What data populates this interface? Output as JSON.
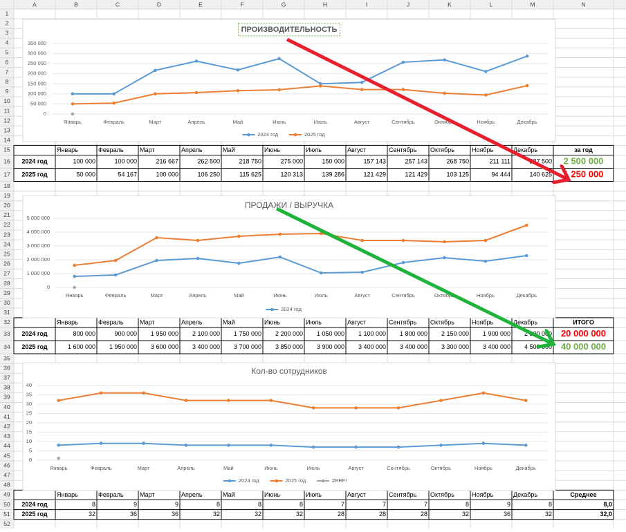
{
  "sheet": {
    "columns": [
      "A",
      "B",
      "C",
      "D",
      "E",
      "F",
      "G",
      "H",
      "I",
      "J",
      "K",
      "L",
      "M",
      "N"
    ],
    "rows": [
      1,
      2,
      3,
      4,
      5,
      6,
      7,
      8,
      9,
      10,
      11,
      12,
      13,
      14,
      15,
      16,
      17,
      18,
      19,
      20,
      21,
      22,
      23,
      24,
      25,
      26,
      27,
      28,
      29,
      30,
      31,
      32,
      33,
      34,
      35,
      36,
      37,
      38,
      39,
      40,
      41,
      42,
      43,
      44,
      45,
      46,
      47,
      48,
      49,
      50,
      51,
      52
    ]
  },
  "chart_data": [
    {
      "type": "line",
      "title": "ПРОИЗВОДИТЕЛЬНОСТЬ",
      "categories": [
        "Январь",
        "Февраль",
        "Март",
        "Апрель",
        "Май",
        "Июнь",
        "Июль",
        "Август",
        "Сентябрь",
        "Октябрь",
        "Ноябрь",
        "Декабрь"
      ],
      "series": [
        {
          "name": "2024 год",
          "color": "#5b9bd5",
          "values": [
            100000,
            100000,
            216667,
            262500,
            218750,
            275000,
            150000,
            157143,
            257143,
            268750,
            211111,
            287500
          ]
        },
        {
          "name": "2025 год",
          "color": "#ed7d31",
          "values": [
            50000,
            54167,
            100000,
            106250,
            115625,
            120313,
            139286,
            121429,
            121429,
            103125,
            94444,
            140625
          ]
        },
        {
          "color": "#a5a5a5",
          "values": [
            0,
            null,
            null,
            null,
            null,
            null,
            null,
            null,
            null,
            null,
            null,
            null
          ]
        }
      ],
      "ylim": [
        0,
        350000
      ],
      "yticks": [
        0,
        {
          "value": 50000,
          "label": "50 000"
        },
        {
          "value": 100000,
          "label": "100 000"
        },
        {
          "value": 150000,
          "label": "150 000"
        },
        {
          "value": 200000,
          "label": "200 000"
        },
        {
          "value": 250000,
          "label": "250 000"
        },
        {
          "value": 300000,
          "label": "300 000"
        },
        {
          "value": 350000,
          "label": "350 000"
        }
      ],
      "grid": true,
      "legend": "bottom"
    },
    {
      "type": "line",
      "title": "ПРОДАЖИ / ВЫРУЧКА",
      "categories": [
        "Январь",
        "Февраль",
        "Март",
        "Апрель",
        "Май",
        "Июнь",
        "Июль",
        "Август",
        "Сентябрь",
        "Октябрь",
        "Ноябрь",
        "Декабрь"
      ],
      "series": [
        {
          "name": "2024 год",
          "color": "#5b9bd5",
          "values": [
            800000,
            900000,
            1950000,
            2100000,
            1750000,
            2200000,
            1050000,
            1100000,
            1800000,
            2150000,
            1900000,
            2300000
          ]
        },
        {
          "color": "#ed7d31",
          "values": [
            1600000,
            1950000,
            3600000,
            3400000,
            3700000,
            3850000,
            3900000,
            3400000,
            3400000,
            3300000,
            3400000,
            4500000
          ]
        },
        {
          "color": "#a5a5a5",
          "values": [
            0,
            null,
            null,
            null,
            null,
            null,
            null,
            null,
            null,
            null,
            null,
            null
          ]
        }
      ],
      "ylim": [
        0,
        5000000
      ],
      "yticks": [
        0,
        {
          "value": 1000000,
          "label": "1 000 000"
        },
        {
          "value": 2000000,
          "label": "2 000 000"
        },
        {
          "value": 3000000,
          "label": "3 000 000"
        },
        {
          "value": 4000000,
          "label": "4 000 000"
        },
        {
          "value": 5000000,
          "label": "5 000 000"
        }
      ],
      "grid": true,
      "legend": "bottom"
    },
    {
      "type": "line",
      "title": "Кол-во сотрудников",
      "categories": [
        "Январь",
        "Февраль",
        "Март",
        "Апрель",
        "Май",
        "Июнь",
        "Июль",
        "Август",
        "Сентябрь",
        "Октябрь",
        "Ноябрь",
        "Декабрь"
      ],
      "series": [
        {
          "name": "2024 год",
          "color": "#5b9bd5",
          "values": [
            8,
            9,
            9,
            8,
            8,
            8,
            7,
            7,
            7,
            8,
            9,
            8
          ]
        },
        {
          "name": "2025 год",
          "color": "#ed7d31",
          "values": [
            32,
            36,
            36,
            32,
            32,
            32,
            28,
            28,
            28,
            32,
            36,
            32
          ]
        },
        {
          "name": "#REF!",
          "color": "#a5a5a5",
          "values": [
            1,
            null,
            null,
            null,
            null,
            null,
            null,
            null,
            null,
            null,
            null,
            null
          ]
        }
      ],
      "ylim": [
        0,
        40
      ],
      "yticks": [
        0,
        5,
        10,
        15,
        20,
        25,
        30,
        35,
        40
      ],
      "grid": true,
      "legend": "bottom"
    }
  ],
  "tables": [
    {
      "header": [
        "Январь",
        "Февраль",
        "Март",
        "Апрель",
        "Май",
        "Июнь",
        "Июль",
        "Август",
        "Сентябрь",
        "Октябрь",
        "Ноябрь",
        "Декабрь",
        "за год"
      ],
      "rows": [
        {
          "label": "2024 год",
          "cells": [
            "100 000",
            "100 000",
            "216 667",
            "262 500",
            "218 750",
            "275 000",
            "150 000",
            "157 143",
            "257 143",
            "268 750",
            "211 111",
            "287 500"
          ],
          "total": "2 500 000",
          "total_color": "#70ad47"
        },
        {
          "label": "2025 год",
          "cells": [
            "50 000",
            "54 167",
            "100 000",
            "106 250",
            "115 625",
            "120 313",
            "139 286",
            "121 429",
            "121 429",
            "103 125",
            "94 444",
            "140 625"
          ],
          "total": "1 250 000",
          "total_color": "#ff0000"
        }
      ]
    },
    {
      "header": [
        "Январь",
        "Февраль",
        "Март",
        "Апрель",
        "Май",
        "Июнь",
        "Июль",
        "Август",
        "Сентябрь",
        "Октябрь",
        "Ноябрь",
        "Декабрь",
        "ИТОГО"
      ],
      "rows": [
        {
          "label": "2024 год",
          "cells": [
            "800 000",
            "900 000",
            "1 950 000",
            "2 100 000",
            "1 750 000",
            "2 200 000",
            "1 050 000",
            "1 100 000",
            "1 800 000",
            "2 150 000",
            "1 900 000",
            "2 300 000"
          ],
          "total": "20 000 000",
          "total_color": "#ff0000"
        },
        {
          "label": "2025 год",
          "cells": [
            "1 600 000",
            "1 950 000",
            "3 600 000",
            "3 400 000",
            "3 700 000",
            "3 850 000",
            "3 900 000",
            "3 400 000",
            "3 400 000",
            "3 300 000",
            "3 400 000",
            "4 500 000"
          ],
          "total": "40 000 000",
          "total_color": "#70ad47"
        }
      ]
    },
    {
      "header": [
        "Январь",
        "Февраль",
        "Март",
        "Апрель",
        "Май",
        "Июнь",
        "Июль",
        "Август",
        "Сентябрь",
        "Октябрь",
        "Ноябрь",
        "Декабрь",
        "Среднее"
      ],
      "rows": [
        {
          "label": "2024 год",
          "cells": [
            "8",
            "9",
            "9",
            "8",
            "8",
            "8",
            "7",
            "7",
            "7",
            "8",
            "9",
            "8"
          ],
          "total": "8,0",
          "total_color": "#000000"
        },
        {
          "label": "2025 год",
          "cells": [
            "32",
            "36",
            "36",
            "32",
            "32",
            "32",
            "28",
            "28",
            "28",
            "32",
            "36",
            "32"
          ],
          "total": "32,0",
          "total_color": "#000000"
        }
      ]
    }
  ]
}
